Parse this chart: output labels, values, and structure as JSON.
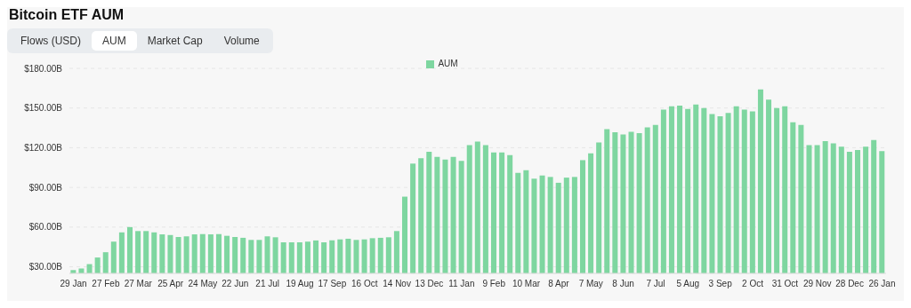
{
  "chart_data": {
    "type": "bar",
    "title": "Bitcoin ETF AUM",
    "annotations": [
      "Flows (USD)",
      "AUM",
      "Market Cap",
      "Volume"
    ],
    "categories": [
      "29 Jan",
      null,
      null,
      null,
      "27 Feb",
      null,
      null,
      null,
      "27 Mar",
      null,
      null,
      null,
      "25 Apr",
      null,
      null,
      null,
      "24 May",
      null,
      null,
      null,
      "22 Jun",
      null,
      null,
      null,
      "21 Jul",
      null,
      null,
      null,
      "19 Aug",
      null,
      null,
      null,
      "17 Sep",
      null,
      null,
      null,
      "16 Oct",
      null,
      null,
      null,
      "14 Nov",
      null,
      null,
      null,
      "13 Dec",
      null,
      null,
      null,
      "11 Jan",
      null,
      null,
      null,
      "9 Feb",
      null,
      null,
      null,
      "10 Mar",
      null,
      null,
      null,
      "8 Apr",
      null,
      null,
      null,
      "7 May",
      null,
      null,
      null,
      "8 Jun",
      null,
      null,
      null,
      "7 Jul",
      null,
      null,
      null,
      "5 Aug",
      null,
      null,
      null,
      "3 Sep",
      null,
      null,
      null,
      "2 Oct",
      null,
      null,
      null,
      "31 Oct",
      null,
      null,
      null,
      "29 Nov",
      null,
      null,
      null,
      "28 Dec",
      null,
      null,
      null,
      "26 Jan"
    ],
    "series": [
      {
        "name": "AUM",
        "color": "#7ed6a0",
        "values": [
          27.5,
          28.7,
          32,
          37,
          41,
          49,
          56,
          60,
          57,
          57,
          56,
          54.5,
          54,
          52.5,
          53,
          54.5,
          54.7,
          54.5,
          54.7,
          53.4,
          52.5,
          51.9,
          50.3,
          50.3,
          53,
          52.3,
          48.5,
          48.5,
          48.5,
          49,
          49.9,
          48.5,
          50,
          50.7,
          51.2,
          50.3,
          50.7,
          51.6,
          51.9,
          52.3,
          57,
          83,
          108,
          112,
          117,
          113,
          111,
          113,
          110,
          122,
          124.6,
          122,
          116.4,
          116.4,
          114.4,
          101,
          103,
          96.6,
          99,
          97.9,
          93.5,
          97.4,
          97.9,
          110.6,
          115.7,
          124,
          134,
          131.7,
          130,
          132,
          131,
          135.3,
          137.3,
          148.8,
          151.3,
          151.8,
          149.3,
          152.6,
          150,
          145.4,
          143.7,
          146.2,
          151.3,
          148.8,
          147.5,
          164,
          156.4,
          150,
          151.3,
          139.3,
          137.3,
          122,
          122,
          125,
          123.3,
          120.8,
          117,
          118.2,
          120.8,
          125.9,
          117.5
        ]
      }
    ],
    "ylim": [
      25,
      180
    ],
    "yticks": [
      {
        "value": 30,
        "label": "$30.00B"
      },
      {
        "value": 60,
        "label": "$60.00B"
      },
      {
        "value": 90,
        "label": "$90.00B"
      },
      {
        "value": 120,
        "label": "$120.00B"
      },
      {
        "value": 150,
        "label": "$150.00B"
      },
      {
        "value": 180,
        "label": "$180.00B"
      }
    ],
    "grid": "y",
    "legend": "top"
  }
}
